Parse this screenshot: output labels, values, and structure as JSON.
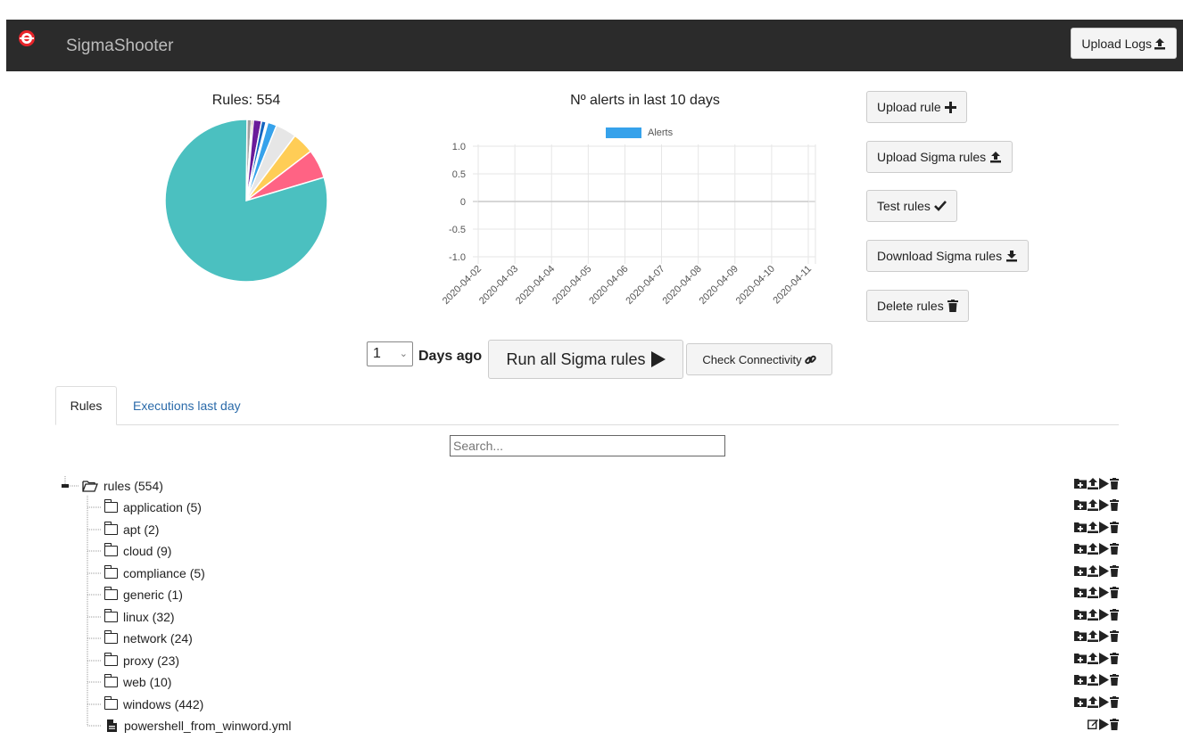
{
  "app": {
    "title": "SigmaShooter"
  },
  "header": {
    "upload_logs_label": "Upload Logs"
  },
  "rules_chart": {
    "title": "Rules: 554"
  },
  "alerts_chart": {
    "title": "Nº alerts in last 10 days"
  },
  "side_buttons": {
    "upload_rule": "Upload rule",
    "upload_sigma_rules": "Upload Sigma rules",
    "test_rules": "Test rules",
    "download_sigma_rules": "Download Sigma rules",
    "delete_rules": "Delete rules"
  },
  "run_bar": {
    "days_value": "1",
    "days_label": "Days ago",
    "run_label": "Run all Sigma rules",
    "check_label": "Check Connectivity"
  },
  "tabs": [
    "Rules",
    "Executions last day"
  ],
  "search": {
    "placeholder": "Search..."
  },
  "tree": {
    "root": "rules (554)",
    "items": [
      {
        "label": "application (5)",
        "type": "folder"
      },
      {
        "label": "apt (2)",
        "type": "folder"
      },
      {
        "label": "cloud (9)",
        "type": "folder"
      },
      {
        "label": "compliance (5)",
        "type": "folder"
      },
      {
        "label": "generic (1)",
        "type": "folder"
      },
      {
        "label": "linux (32)",
        "type": "folder"
      },
      {
        "label": "network (24)",
        "type": "folder"
      },
      {
        "label": "proxy (23)",
        "type": "folder"
      },
      {
        "label": "web (10)",
        "type": "folder"
      },
      {
        "label": "windows (442)",
        "type": "folder"
      },
      {
        "label": "powershell_from_winword.yml",
        "type": "file"
      }
    ]
  },
  "colors": {
    "navbar": "#2b2b2b",
    "accent": "#e8242a",
    "link": "#2a6aa9",
    "alerts_series": "#36a2eb"
  },
  "chart_data": [
    {
      "type": "pie",
      "title": "Rules: 554",
      "categories": [
        "windows",
        "application",
        "apt",
        "cloud",
        "compliance",
        "generic",
        "linux",
        "network",
        "proxy",
        "web",
        "powershell_from_winword.yml"
      ],
      "values": [
        442,
        5,
        2,
        9,
        5,
        1,
        32,
        24,
        23,
        10,
        1
      ],
      "colors": [
        "#4bc0c0",
        "#a0a0a0",
        "#8b4513",
        "#6a1b9a",
        "#1565c0",
        "#2e7d32",
        "#ff6384",
        "#ffcd56",
        "#e6e6e6",
        "#36a2eb",
        "#ff9f40"
      ]
    },
    {
      "type": "line",
      "title": "Nº alerts in last 10 days",
      "x": [
        "2020-04-02",
        "2020-04-03",
        "2020-04-04",
        "2020-04-05",
        "2020-04-06",
        "2020-04-07",
        "2020-04-08",
        "2020-04-09",
        "2020-04-10",
        "2020-04-11"
      ],
      "series": [
        {
          "name": "Alerts",
          "values": [
            0,
            0,
            0,
            0,
            0,
            0,
            0,
            0,
            0,
            0
          ]
        }
      ],
      "ylim": [
        -1.0,
        1.0
      ],
      "yticks": [
        "1.0",
        "0.5",
        "0",
        "-0.5",
        "-1.0"
      ],
      "grid": true,
      "legend": "top"
    }
  ]
}
